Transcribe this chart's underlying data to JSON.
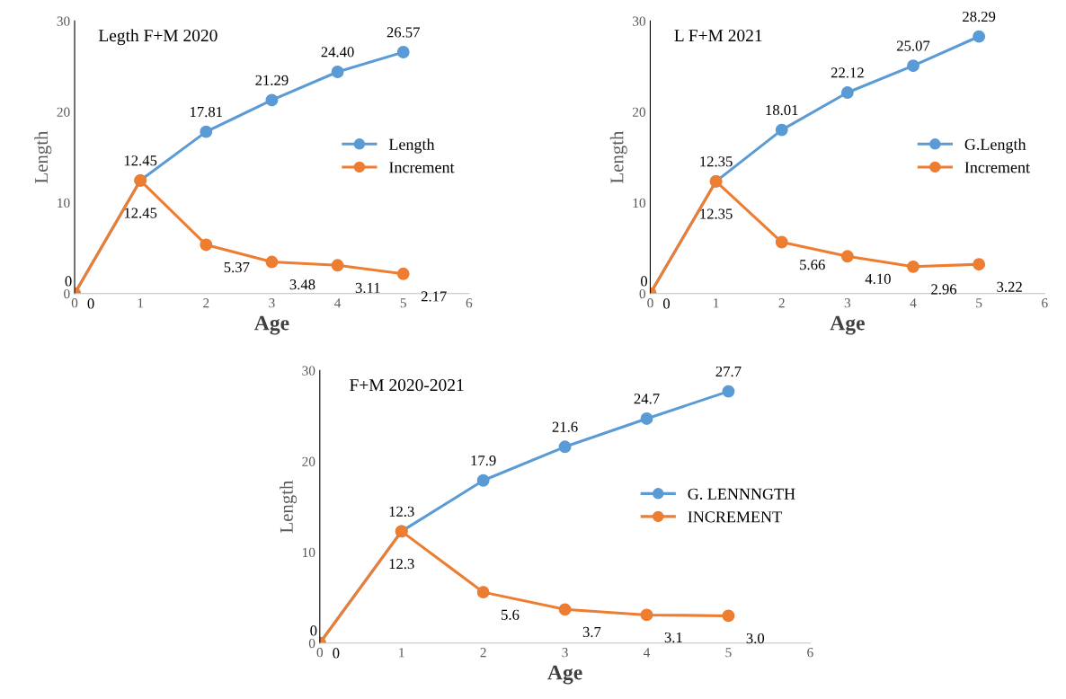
{
  "chart_data": [
    {
      "type": "line",
      "title": "Legth F+M 2020",
      "xlabel": "Age",
      "ylabel": "Length",
      "x": [
        0,
        1,
        2,
        3,
        4,
        5
      ],
      "xlim": [
        0,
        6
      ],
      "xticks": [
        0,
        1,
        2,
        3,
        4,
        5,
        6
      ],
      "ylim": [
        0,
        30
      ],
      "yticks": [
        0,
        10,
        20,
        30
      ],
      "grid": false,
      "legend": "right",
      "marker": "circle",
      "series": [
        {
          "name": "Length",
          "color": "#5b9bd5",
          "values": [
            0,
            12.45,
            17.81,
            21.29,
            24.4,
            26.57
          ],
          "value_labels": [
            "0",
            "12.45",
            "17.81",
            "21.29",
            "24.40",
            "26.57"
          ]
        },
        {
          "name": "Increment",
          "color": "#ed7d31",
          "values": [
            0,
            12.45,
            5.37,
            3.48,
            3.11,
            2.17
          ],
          "value_labels": [
            "0",
            "12.45",
            "5.37",
            "3.48",
            "3.11",
            "2.17"
          ]
        }
      ]
    },
    {
      "type": "line",
      "title": "L F+M 2021",
      "xlabel": "Age",
      "ylabel": "Length",
      "x": [
        0,
        1,
        2,
        3,
        4,
        5
      ],
      "xlim": [
        0,
        6
      ],
      "xticks": [
        0,
        1,
        2,
        3,
        4,
        5,
        6
      ],
      "ylim": [
        0,
        30
      ],
      "yticks": [
        0,
        10,
        20,
        30
      ],
      "grid": false,
      "legend": "right",
      "marker": "circle",
      "series": [
        {
          "name": "G.Length",
          "color": "#5b9bd5",
          "values": [
            0,
            12.35,
            18.01,
            22.12,
            25.07,
            28.29
          ],
          "value_labels": [
            "0",
            "12.35",
            "18.01",
            "22.12",
            "25.07",
            "28.29"
          ]
        },
        {
          "name": "Increment",
          "color": "#ed7d31",
          "values": [
            0,
            12.35,
            5.66,
            4.1,
            2.96,
            3.22
          ],
          "value_labels": [
            "0",
            "12.35",
            "5.66",
            "4.10",
            "2.96",
            "3.22"
          ]
        }
      ]
    },
    {
      "type": "line",
      "title": "F+M 2020-2021",
      "xlabel": "Age",
      "ylabel": "Length",
      "x": [
        0,
        1,
        2,
        3,
        4,
        5
      ],
      "xlim": [
        0,
        6
      ],
      "xticks": [
        0,
        1,
        2,
        3,
        4,
        5,
        6
      ],
      "ylim": [
        0,
        30
      ],
      "yticks": [
        0,
        10,
        20,
        30
      ],
      "grid": false,
      "legend": "right",
      "marker": "circle",
      "series": [
        {
          "name": "G. LENNNGTH",
          "color": "#5b9bd5",
          "values": [
            0,
            12.3,
            17.9,
            21.6,
            24.7,
            27.7
          ],
          "value_labels": [
            "0",
            "12.3",
            "17.9",
            "21.6",
            "24.7",
            "27.7"
          ]
        },
        {
          "name": "INCREMENT",
          "color": "#ed7d31",
          "values": [
            0,
            12.3,
            5.6,
            3.7,
            3.1,
            3.0
          ],
          "value_labels": [
            "0",
            "12.3",
            "5.6",
            "3.7",
            "3.1",
            "3.0"
          ]
        }
      ]
    }
  ]
}
